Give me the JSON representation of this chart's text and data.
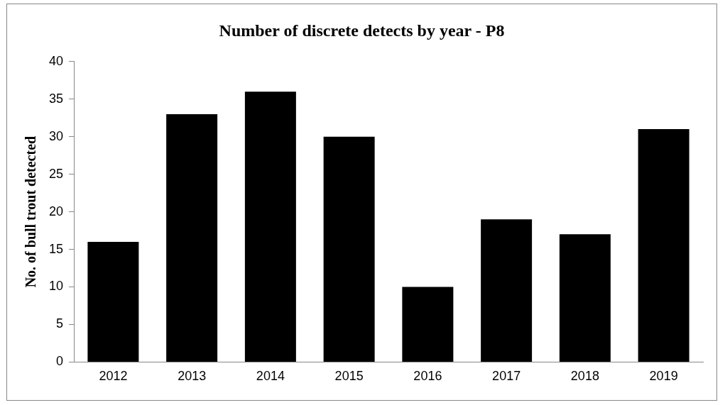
{
  "chart_data": {
    "type": "bar",
    "title": "Number of discrete detects by year - P8",
    "ylabel": "No. of bull trout detected",
    "categories": [
      "2012",
      "2013",
      "2014",
      "2015",
      "2016",
      "2017",
      "2018",
      "2019"
    ],
    "values": [
      16,
      33,
      36,
      30,
      10,
      19,
      17,
      31
    ],
    "color": "#000000",
    "ylim": [
      0,
      40
    ],
    "yticks": [
      0,
      5,
      10,
      15,
      20,
      25,
      30,
      35,
      40
    ],
    "grid": false,
    "legend": false
  }
}
